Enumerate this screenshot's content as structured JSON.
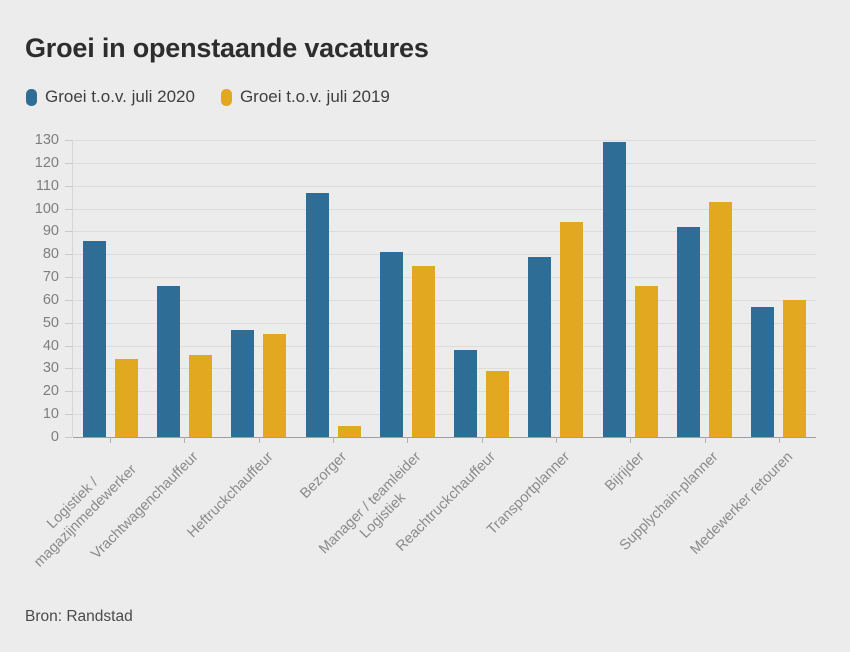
{
  "title": "Groei in openstaande vacatures",
  "legend": {
    "items": [
      {
        "label": "Groei t.o.v. juli 2020",
        "color": "#2e6d96"
      },
      {
        "label": "Groei t.o.v. juli 2019",
        "color": "#e2a81f"
      }
    ]
  },
  "source": "Bron: Randstad",
  "colors": {
    "background": "#ececec",
    "gridline": "#dcdcdc",
    "axis_line": "#9e9e9e",
    "tick": "#b3b3b3",
    "title_text": "#2d2d2d",
    "axis_label_text": "#8a8a8a"
  },
  "chart_data": {
    "type": "bar",
    "title": "Groei in openstaande vacatures",
    "categories": [
      "Logistiek /\nmagazijnmedewerker",
      "Vrachtwagenchauffeur",
      "Heftruckchauffeur",
      "Bezorger",
      "Manager / teamleider\nLogistiek",
      "Reachtruckchauffeur",
      "Transportplanner",
      "Bijrijder",
      "Supplychain-planner",
      "Medewerker retouren"
    ],
    "series": [
      {
        "name": "Groei t.o.v. juli 2020",
        "color": "#2e6d96",
        "values": [
          86,
          66,
          47,
          107,
          81,
          38,
          79,
          129,
          92,
          57
        ]
      },
      {
        "name": "Groei t.o.v. juli 2019",
        "color": "#e2a81f",
        "values": [
          34,
          36,
          45,
          5,
          75,
          29,
          94,
          66,
          103,
          60
        ]
      }
    ],
    "xlabel": "",
    "ylabel": "",
    "ylim": [
      0,
      130
    ],
    "ytick_step": 10,
    "grid": true,
    "legend_position": "top-left",
    "source": "Bron: Randstad"
  }
}
